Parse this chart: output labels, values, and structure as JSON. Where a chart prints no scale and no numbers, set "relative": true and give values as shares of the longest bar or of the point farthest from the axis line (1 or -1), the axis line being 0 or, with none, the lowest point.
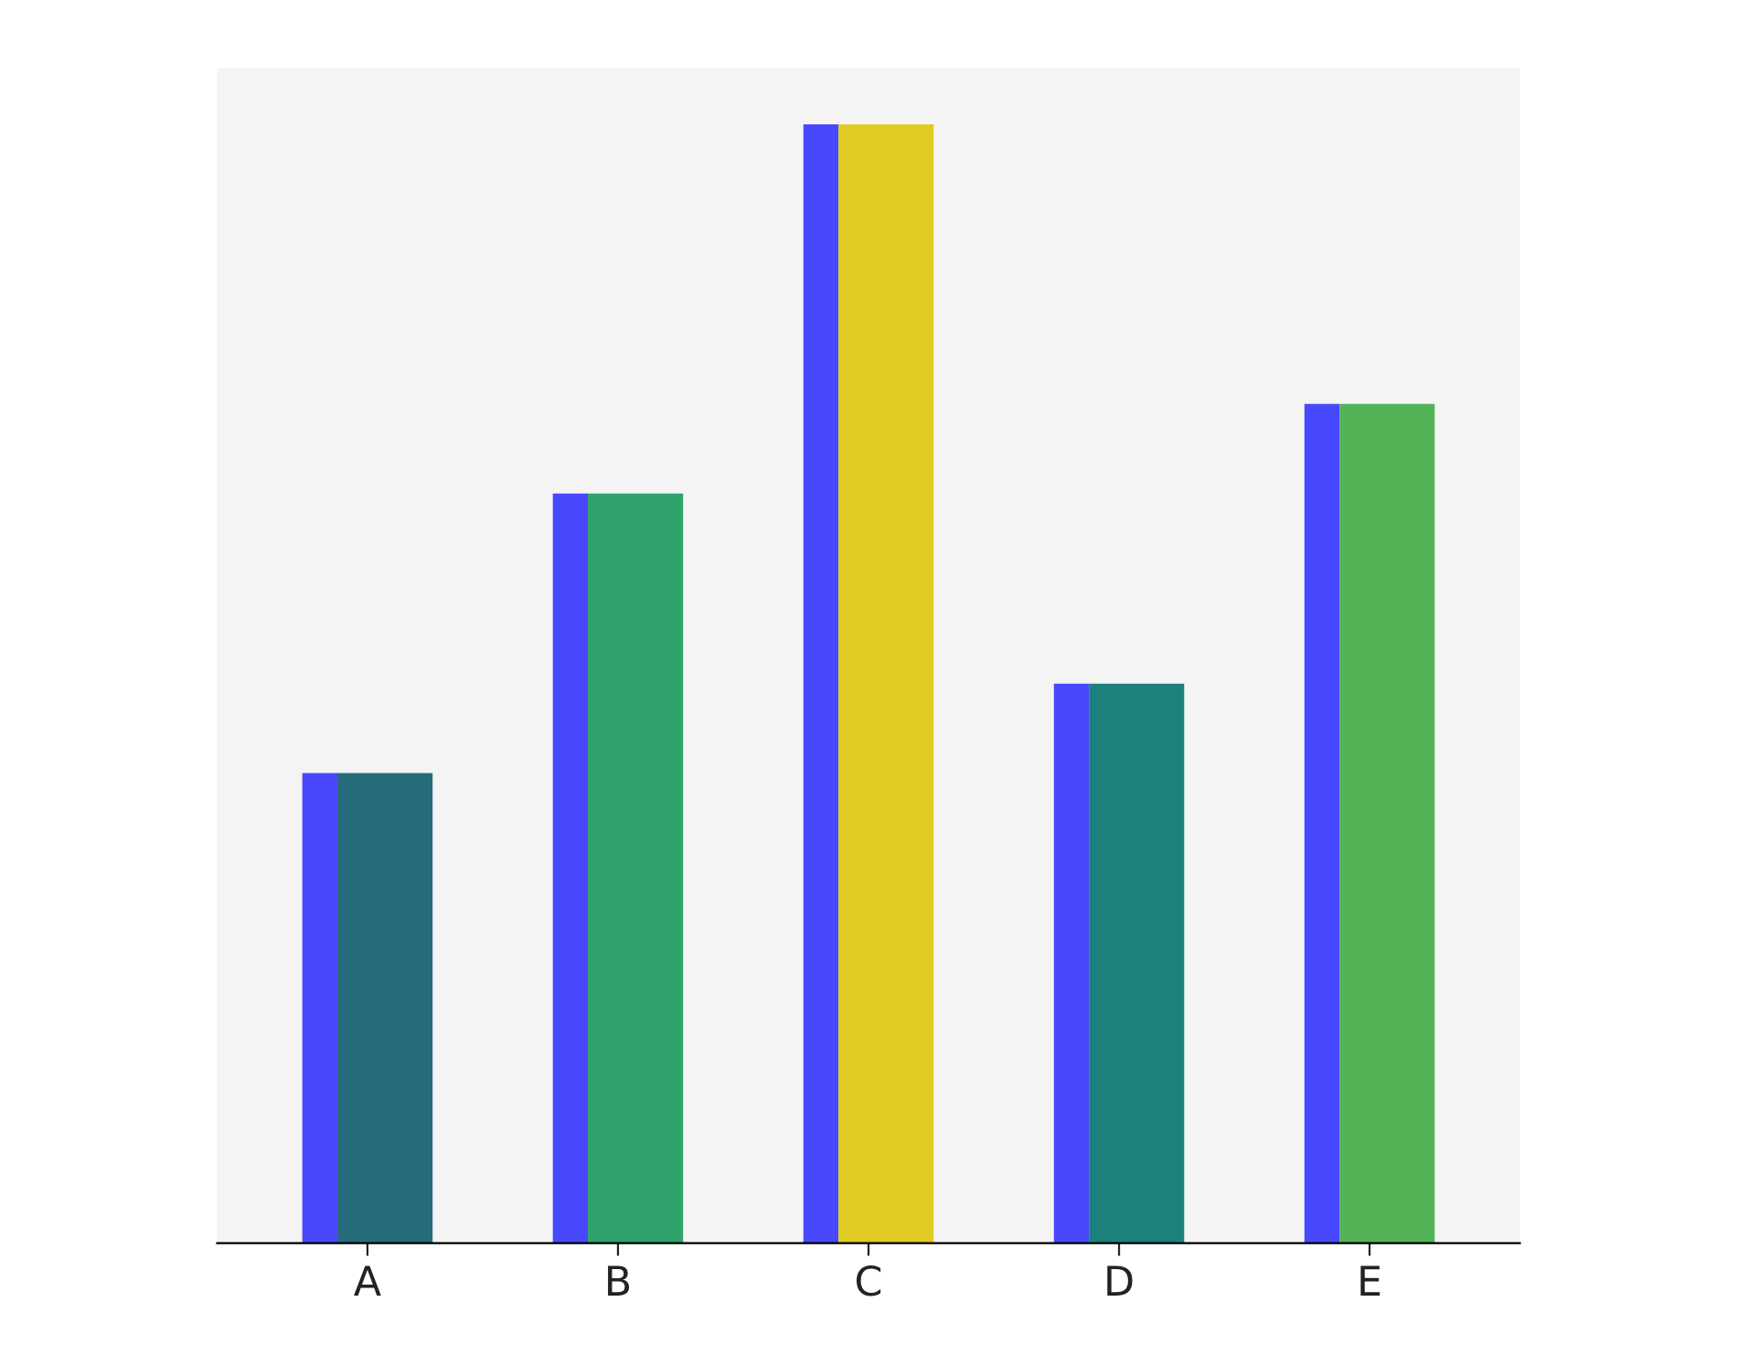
{
  "chart_data": {
    "type": "bar",
    "categories": [
      "A",
      "B",
      "C",
      "D",
      "E"
    ],
    "relative": true,
    "series": [
      {
        "color": "#4848ff",
        "values": [
          0.42,
          0.67,
          1,
          0.5,
          0.75
        ]
      },
      {
        "colors": [
          "#266b7a",
          "#2fa36b",
          "#dfcb22",
          "#1c807c",
          "#52b357"
        ],
        "values": [
          0.42,
          0.67,
          1,
          0.5,
          0.75
        ]
      }
    ]
  }
}
